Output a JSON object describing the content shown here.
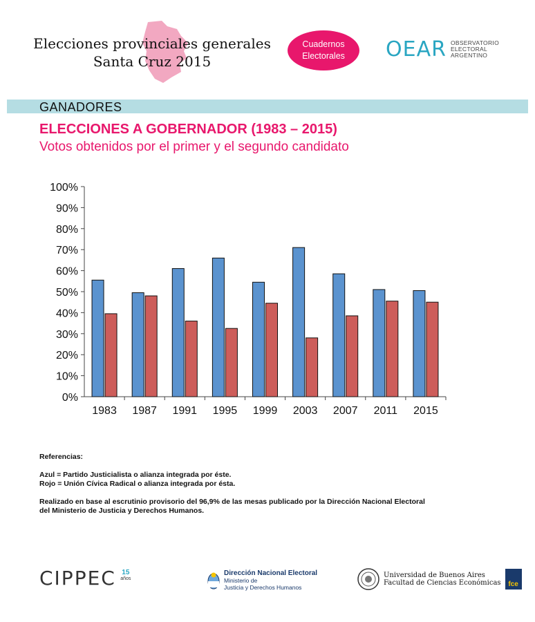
{
  "header": {
    "title_line1": "Elecciones provinciales generales",
    "title_line2": "Santa Cruz 2015",
    "badge_line1": "Cuadernos",
    "badge_line2": "Electorales",
    "oear_mark": "OEAR",
    "oear_line1": "OBSERVATORIO",
    "oear_line2": "ELECTORAL",
    "oear_line3": "ARGENTINO"
  },
  "section": {
    "label": "GANADORES"
  },
  "colors": {
    "accent": "#e8176c",
    "bar_blue": "#5b93cf",
    "bar_red": "#cd5d5a",
    "section_bar": "#b5dde3"
  },
  "chart_data": {
    "type": "bar",
    "title": "ELECCIONES A GOBERNADOR (1983 – 2015)",
    "subtitle": "Votos obtenidos por el primer y el segundo candidato",
    "categories": [
      "1983",
      "1987",
      "1991",
      "1995",
      "1999",
      "2003",
      "2007",
      "2011",
      "2015"
    ],
    "series": [
      {
        "name": "Azul",
        "color": "#5b93cf",
        "values": [
          55.5,
          49.5,
          61,
          66,
          54.5,
          71,
          58.5,
          51,
          50.5
        ]
      },
      {
        "name": "Rojo",
        "color": "#cd5d5a",
        "values": [
          39.5,
          48,
          36,
          32.5,
          44.5,
          28,
          38.5,
          45.5,
          45
        ]
      }
    ],
    "ylim": [
      0,
      100
    ],
    "yticks": [
      "0%",
      "10%",
      "20%",
      "30%",
      "40%",
      "50%",
      "60%",
      "70%",
      "80%",
      "90%",
      "100%"
    ],
    "xlabel": "",
    "ylabel": "",
    "grid": false
  },
  "notes": {
    "heading": "Referencias:",
    "blue": "Azul = Partido Justicialista o alianza integrada por éste.",
    "red": "Rojo = Unión Cívica Radical o alianza integrada por ésta.",
    "source_line1": "Realizado en base al escrutinio provisorio del 96,9% de las mesas publicado por la Dirección Nacional Electoral",
    "source_line2": "del Ministerio de Justicia y Derechos Humanos."
  },
  "footer": {
    "cippec": "CIPPEC",
    "cippec_badge_top": "15",
    "cippec_badge_sub": "años",
    "dne_line1": "Dirección Nacional Electoral",
    "dne_line2": "Ministerio de",
    "dne_line3": "Justicia y Derechos Humanos",
    "uba_line1": "Universidad de Buenos Aires",
    "uba_line2": "Facultad de Ciencias Económicas",
    "fce": "fce"
  }
}
